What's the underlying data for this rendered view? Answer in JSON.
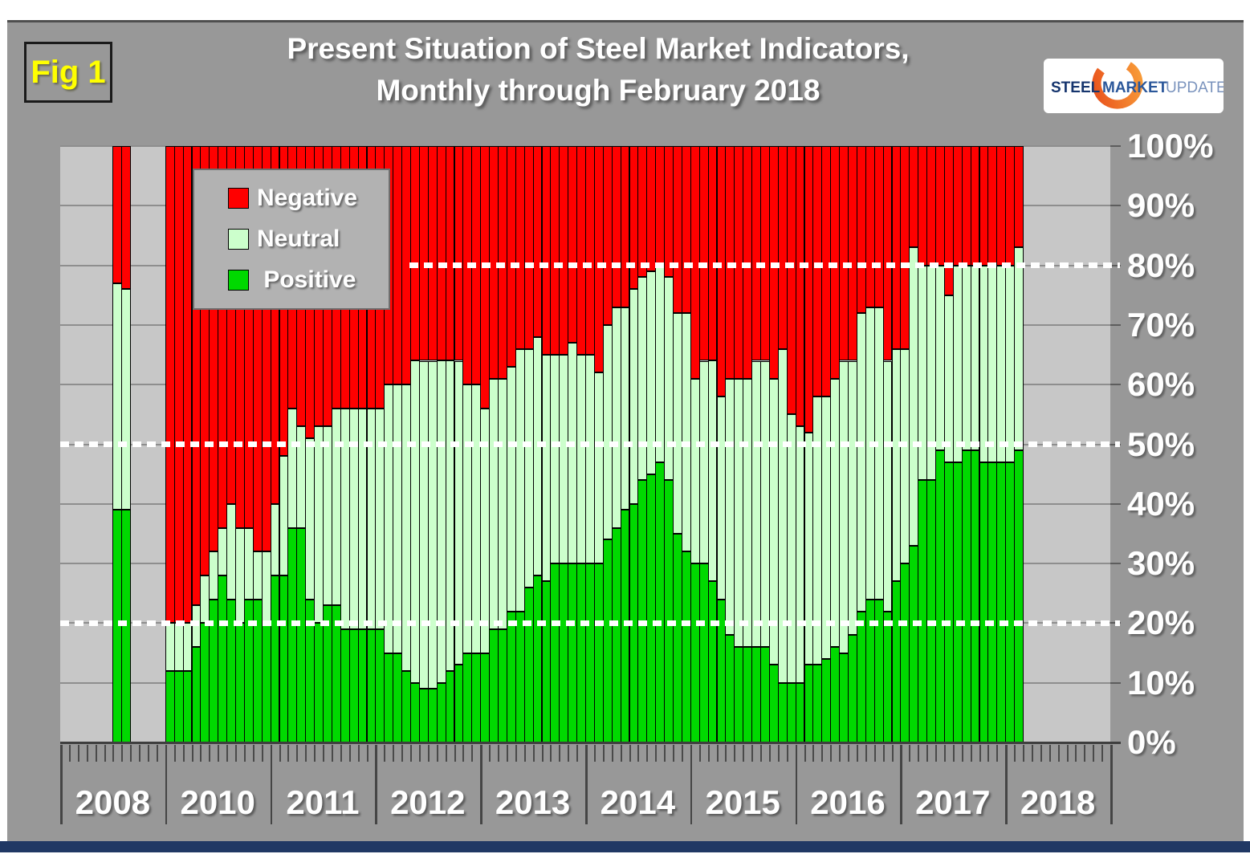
{
  "fig_label": "Fig 1",
  "title": {
    "line1": "Present Situation of Steel Market Indicators,",
    "line2": "Monthly through February 2018"
  },
  "logo": {
    "word1": "STEEL",
    "word2": "MARKET",
    "word3": "UPDATE"
  },
  "colors": {
    "negative": "#ff0000",
    "neutral": "#ccffcc",
    "positive": "#00d900",
    "page_gray": "#989898",
    "plot_gray": "#c7c7c7",
    "fig_yellow": "#ffff00",
    "bottom_strip_navy": "#203864"
  },
  "chart_data": {
    "type": "bar",
    "stacked": true,
    "title": "Present Situation of Steel Market Indicators, Monthly through February 2018",
    "legend_position": "upper-left",
    "legend": [
      {
        "label": "Negative",
        "color": "#ff0000"
      },
      {
        "label": "Neutral",
        "color": "#ccffcc"
      },
      {
        "label": " Positive",
        "color": "#00d900"
      }
    ],
    "y_axis": {
      "side": "right",
      "min": 0,
      "max": 100,
      "tick_step": 10,
      "tick_labels": [
        "100%",
        "90%",
        "80%",
        "70%",
        "60%",
        "50%",
        "40%",
        "30%",
        "20%",
        "10%",
        "0%"
      ]
    },
    "x_axis": {
      "section_labels": [
        "2008",
        "2010",
        "2011",
        "2012",
        "2013",
        "2014",
        "2015",
        "2016",
        "2017",
        "2018"
      ],
      "months_per_section": 12
    },
    "dotted_reference_lines_pct": [
      80,
      50,
      20
    ],
    "grid": true,
    "bars_unit": "percent",
    "bars": [
      {
        "y": "2008",
        "m": 7,
        "pos": 39,
        "neu": 38,
        "neg": 23
      },
      {
        "y": "2008",
        "m": 8,
        "pos": 39,
        "neu": 37,
        "neg": 24
      },
      {
        "y": "2010",
        "m": 1,
        "pos": 12,
        "neu": 8,
        "neg": 80
      },
      {
        "y": "2010",
        "m": 2,
        "pos": 12,
        "neu": 8,
        "neg": 80
      },
      {
        "y": "2010",
        "m": 3,
        "pos": 12,
        "neu": 8,
        "neg": 80
      },
      {
        "y": "2010",
        "m": 4,
        "pos": 16,
        "neu": 7,
        "neg": 77
      },
      {
        "y": "2010",
        "m": 5,
        "pos": 20,
        "neu": 8,
        "neg": 72
      },
      {
        "y": "2010",
        "m": 6,
        "pos": 24,
        "neu": 8,
        "neg": 68
      },
      {
        "y": "2010",
        "m": 7,
        "pos": 28,
        "neu": 8,
        "neg": 64
      },
      {
        "y": "2010",
        "m": 8,
        "pos": 24,
        "neu": 16,
        "neg": 60
      },
      {
        "y": "2010",
        "m": 9,
        "pos": 20,
        "neu": 16,
        "neg": 64
      },
      {
        "y": "2010",
        "m": 10,
        "pos": 24,
        "neu": 12,
        "neg": 64
      },
      {
        "y": "2010",
        "m": 11,
        "pos": 24,
        "neu": 8,
        "neg": 68
      },
      {
        "y": "2010",
        "m": 12,
        "pos": 20,
        "neu": 12,
        "neg": 68
      },
      {
        "y": "2011",
        "m": 1,
        "pos": 28,
        "neu": 12,
        "neg": 60
      },
      {
        "y": "2011",
        "m": 2,
        "pos": 28,
        "neu": 20,
        "neg": 52
      },
      {
        "y": "2011",
        "m": 3,
        "pos": 36,
        "neu": 20,
        "neg": 44
      },
      {
        "y": "2011",
        "m": 4,
        "pos": 36,
        "neu": 17,
        "neg": 47
      },
      {
        "y": "2011",
        "m": 5,
        "pos": 24,
        "neu": 27,
        "neg": 49
      },
      {
        "y": "2011",
        "m": 6,
        "pos": 20,
        "neu": 33,
        "neg": 47
      },
      {
        "y": "2011",
        "m": 7,
        "pos": 23,
        "neu": 30,
        "neg": 47
      },
      {
        "y": "2011",
        "m": 8,
        "pos": 23,
        "neu": 33,
        "neg": 44
      },
      {
        "y": "2011",
        "m": 9,
        "pos": 19,
        "neu": 37,
        "neg": 44
      },
      {
        "y": "2011",
        "m": 10,
        "pos": 19,
        "neu": 37,
        "neg": 44
      },
      {
        "y": "2011",
        "m": 11,
        "pos": 19,
        "neu": 37,
        "neg": 44
      },
      {
        "y": "2011",
        "m": 12,
        "pos": 19,
        "neu": 37,
        "neg": 44
      },
      {
        "y": "2012",
        "m": 1,
        "pos": 19,
        "neu": 37,
        "neg": 44
      },
      {
        "y": "2012",
        "m": 2,
        "pos": 15,
        "neu": 45,
        "neg": 40
      },
      {
        "y": "2012",
        "m": 3,
        "pos": 15,
        "neu": 45,
        "neg": 40
      },
      {
        "y": "2012",
        "m": 4,
        "pos": 12,
        "neu": 48,
        "neg": 40
      },
      {
        "y": "2012",
        "m": 5,
        "pos": 10,
        "neu": 54,
        "neg": 36
      },
      {
        "y": "2012",
        "m": 6,
        "pos": 9,
        "neu": 55,
        "neg": 36
      },
      {
        "y": "2012",
        "m": 7,
        "pos": 9,
        "neu": 55,
        "neg": 36
      },
      {
        "y": "2012",
        "m": 8,
        "pos": 10,
        "neu": 54,
        "neg": 36
      },
      {
        "y": "2012",
        "m": 9,
        "pos": 12,
        "neu": 52,
        "neg": 36
      },
      {
        "y": "2012",
        "m": 10,
        "pos": 13,
        "neu": 51,
        "neg": 36
      },
      {
        "y": "2012",
        "m": 11,
        "pos": 15,
        "neu": 45,
        "neg": 40
      },
      {
        "y": "2012",
        "m": 12,
        "pos": 15,
        "neu": 45,
        "neg": 40
      },
      {
        "y": "2013",
        "m": 1,
        "pos": 15,
        "neu": 41,
        "neg": 44
      },
      {
        "y": "2013",
        "m": 2,
        "pos": 19,
        "neu": 42,
        "neg": 39
      },
      {
        "y": "2013",
        "m": 3,
        "pos": 19,
        "neu": 42,
        "neg": 39
      },
      {
        "y": "2013",
        "m": 4,
        "pos": 22,
        "neu": 41,
        "neg": 37
      },
      {
        "y": "2013",
        "m": 5,
        "pos": 22,
        "neu": 44,
        "neg": 34
      },
      {
        "y": "2013",
        "m": 6,
        "pos": 26,
        "neu": 40,
        "neg": 34
      },
      {
        "y": "2013",
        "m": 7,
        "pos": 28,
        "neu": 40,
        "neg": 32
      },
      {
        "y": "2013",
        "m": 8,
        "pos": 27,
        "neu": 38,
        "neg": 35
      },
      {
        "y": "2013",
        "m": 9,
        "pos": 30,
        "neu": 35,
        "neg": 35
      },
      {
        "y": "2013",
        "m": 10,
        "pos": 30,
        "neu": 35,
        "neg": 35
      },
      {
        "y": "2013",
        "m": 11,
        "pos": 30,
        "neu": 37,
        "neg": 33
      },
      {
        "y": "2013",
        "m": 12,
        "pos": 30,
        "neu": 35,
        "neg": 35
      },
      {
        "y": "2014",
        "m": 1,
        "pos": 30,
        "neu": 35,
        "neg": 35
      },
      {
        "y": "2014",
        "m": 2,
        "pos": 30,
        "neu": 32,
        "neg": 38
      },
      {
        "y": "2014",
        "m": 3,
        "pos": 34,
        "neu": 36,
        "neg": 30
      },
      {
        "y": "2014",
        "m": 4,
        "pos": 36,
        "neu": 37,
        "neg": 27
      },
      {
        "y": "2014",
        "m": 5,
        "pos": 39,
        "neu": 34,
        "neg": 27
      },
      {
        "y": "2014",
        "m": 6,
        "pos": 40,
        "neu": 36,
        "neg": 24
      },
      {
        "y": "2014",
        "m": 7,
        "pos": 44,
        "neu": 34,
        "neg": 22
      },
      {
        "y": "2014",
        "m": 8,
        "pos": 45,
        "neu": 34,
        "neg": 21
      },
      {
        "y": "2014",
        "m": 9,
        "pos": 47,
        "neu": 33,
        "neg": 20
      },
      {
        "y": "2014",
        "m": 10,
        "pos": 44,
        "neu": 34,
        "neg": 22
      },
      {
        "y": "2014",
        "m": 11,
        "pos": 35,
        "neu": 37,
        "neg": 28
      },
      {
        "y": "2014",
        "m": 12,
        "pos": 32,
        "neu": 40,
        "neg": 28
      },
      {
        "y": "2015",
        "m": 1,
        "pos": 30,
        "neu": 31,
        "neg": 39
      },
      {
        "y": "2015",
        "m": 2,
        "pos": 30,
        "neu": 34,
        "neg": 36
      },
      {
        "y": "2015",
        "m": 3,
        "pos": 27,
        "neu": 37,
        "neg": 36
      },
      {
        "y": "2015",
        "m": 4,
        "pos": 24,
        "neu": 34,
        "neg": 42
      },
      {
        "y": "2015",
        "m": 5,
        "pos": 18,
        "neu": 43,
        "neg": 39
      },
      {
        "y": "2015",
        "m": 6,
        "pos": 16,
        "neu": 45,
        "neg": 39
      },
      {
        "y": "2015",
        "m": 7,
        "pos": 16,
        "neu": 45,
        "neg": 39
      },
      {
        "y": "2015",
        "m": 8,
        "pos": 16,
        "neu": 48,
        "neg": 36
      },
      {
        "y": "2015",
        "m": 9,
        "pos": 16,
        "neu": 48,
        "neg": 36
      },
      {
        "y": "2015",
        "m": 10,
        "pos": 13,
        "neu": 48,
        "neg": 39
      },
      {
        "y": "2015",
        "m": 11,
        "pos": 10,
        "neu": 56,
        "neg": 34
      },
      {
        "y": "2015",
        "m": 12,
        "pos": 10,
        "neu": 45,
        "neg": 45
      },
      {
        "y": "2016",
        "m": 1,
        "pos": 10,
        "neu": 43,
        "neg": 47
      },
      {
        "y": "2016",
        "m": 2,
        "pos": 13,
        "neu": 39,
        "neg": 48
      },
      {
        "y": "2016",
        "m": 3,
        "pos": 13,
        "neu": 45,
        "neg": 42
      },
      {
        "y": "2016",
        "m": 4,
        "pos": 14,
        "neu": 44,
        "neg": 42
      },
      {
        "y": "2016",
        "m": 5,
        "pos": 16,
        "neu": 45,
        "neg": 39
      },
      {
        "y": "2016",
        "m": 6,
        "pos": 15,
        "neu": 49,
        "neg": 36
      },
      {
        "y": "2016",
        "m": 7,
        "pos": 18,
        "neu": 46,
        "neg": 36
      },
      {
        "y": "2016",
        "m": 8,
        "pos": 22,
        "neu": 50,
        "neg": 28
      },
      {
        "y": "2016",
        "m": 9,
        "pos": 24,
        "neu": 49,
        "neg": 27
      },
      {
        "y": "2016",
        "m": 10,
        "pos": 24,
        "neu": 49,
        "neg": 27
      },
      {
        "y": "2016",
        "m": 11,
        "pos": 22,
        "neu": 42,
        "neg": 36
      },
      {
        "y": "2016",
        "m": 12,
        "pos": 27,
        "neu": 39,
        "neg": 34
      },
      {
        "y": "2017",
        "m": 1,
        "pos": 30,
        "neu": 36,
        "neg": 34
      },
      {
        "y": "2017",
        "m": 2,
        "pos": 33,
        "neu": 50,
        "neg": 17
      },
      {
        "y": "2017",
        "m": 3,
        "pos": 44,
        "neu": 36,
        "neg": 20
      },
      {
        "y": "2017",
        "m": 4,
        "pos": 44,
        "neu": 36,
        "neg": 20
      },
      {
        "y": "2017",
        "m": 5,
        "pos": 49,
        "neu": 31,
        "neg": 20
      },
      {
        "y": "2017",
        "m": 6,
        "pos": 47,
        "neu": 28,
        "neg": 25
      },
      {
        "y": "2017",
        "m": 7,
        "pos": 47,
        "neu": 33,
        "neg": 20
      },
      {
        "y": "2017",
        "m": 8,
        "pos": 49,
        "neu": 31,
        "neg": 20
      },
      {
        "y": "2017",
        "m": 9,
        "pos": 49,
        "neu": 31,
        "neg": 20
      },
      {
        "y": "2017",
        "m": 10,
        "pos": 47,
        "neu": 33,
        "neg": 20
      },
      {
        "y": "2017",
        "m": 11,
        "pos": 47,
        "neu": 33,
        "neg": 20
      },
      {
        "y": "2017",
        "m": 12,
        "pos": 47,
        "neu": 33,
        "neg": 20
      },
      {
        "y": "2018",
        "m": 1,
        "pos": 47,
        "neu": 33,
        "neg": 20
      },
      {
        "y": "2018",
        "m": 2,
        "pos": 49,
        "neu": 34,
        "neg": 17
      }
    ]
  }
}
